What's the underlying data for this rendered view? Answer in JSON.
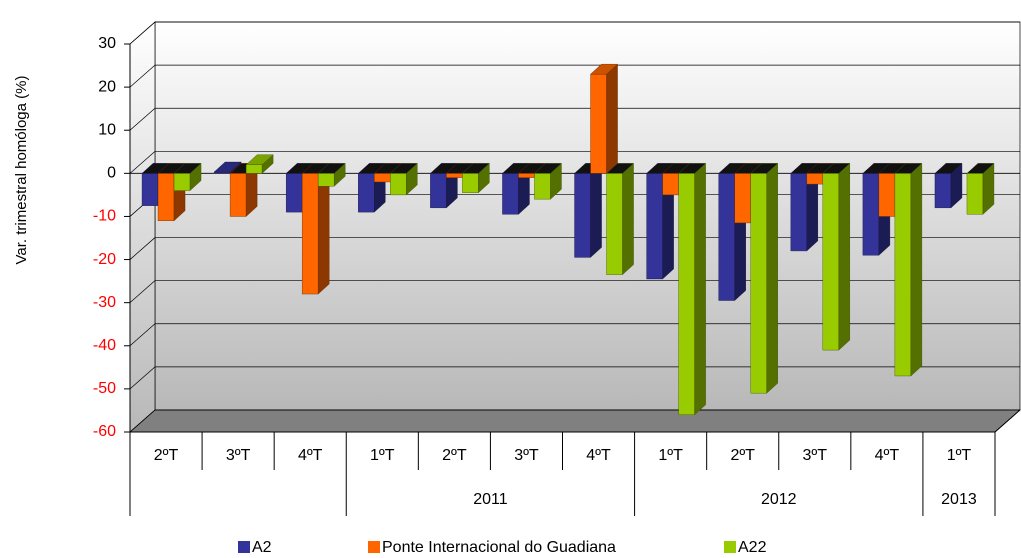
{
  "chart_data": {
    "type": "bar3d",
    "y_label": "Var. trimestral homóloga (%)",
    "categories": [
      "2ºT",
      "3ºT",
      "4ºT",
      "1ºT",
      "2ºT",
      "3ºT",
      "4ºT",
      "1ºT",
      "2ºT",
      "3ºT",
      "4ºT",
      "1ºT"
    ],
    "category_groups": [
      {
        "label": null,
        "size": 3
      },
      {
        "label": "2011",
        "size": 4
      },
      {
        "label": "2012",
        "size": 4
      },
      {
        "label": "2013",
        "size": 1
      }
    ],
    "series": [
      {
        "name": "A2",
        "color": "#333399",
        "values": [
          -7.5,
          0.3,
          -9,
          -9,
          -8,
          -9.5,
          -19.5,
          -24.5,
          -29.5,
          -18,
          -19,
          -8
        ]
      },
      {
        "name": "Ponte Internacional do Guadiana",
        "color": "#ff6600",
        "values": [
          -11,
          -10,
          -28,
          -2,
          -1,
          -1,
          23,
          -5,
          -11.5,
          -2.5,
          -10,
          null
        ]
      },
      {
        "name": "A22",
        "color": "#99cc00",
        "values": [
          -4,
          2,
          -3,
          -5,
          -4.5,
          -6,
          -23.5,
          -56,
          -51,
          -41,
          -47,
          -9.5
        ]
      }
    ],
    "ylim": [
      -60,
      30
    ],
    "yticks": [
      -60,
      -50,
      -40,
      -30,
      -20,
      -10,
      0,
      10,
      20,
      30
    ],
    "negative_tick_color": "#ff0000",
    "grid": true,
    "legend": "bottom"
  }
}
